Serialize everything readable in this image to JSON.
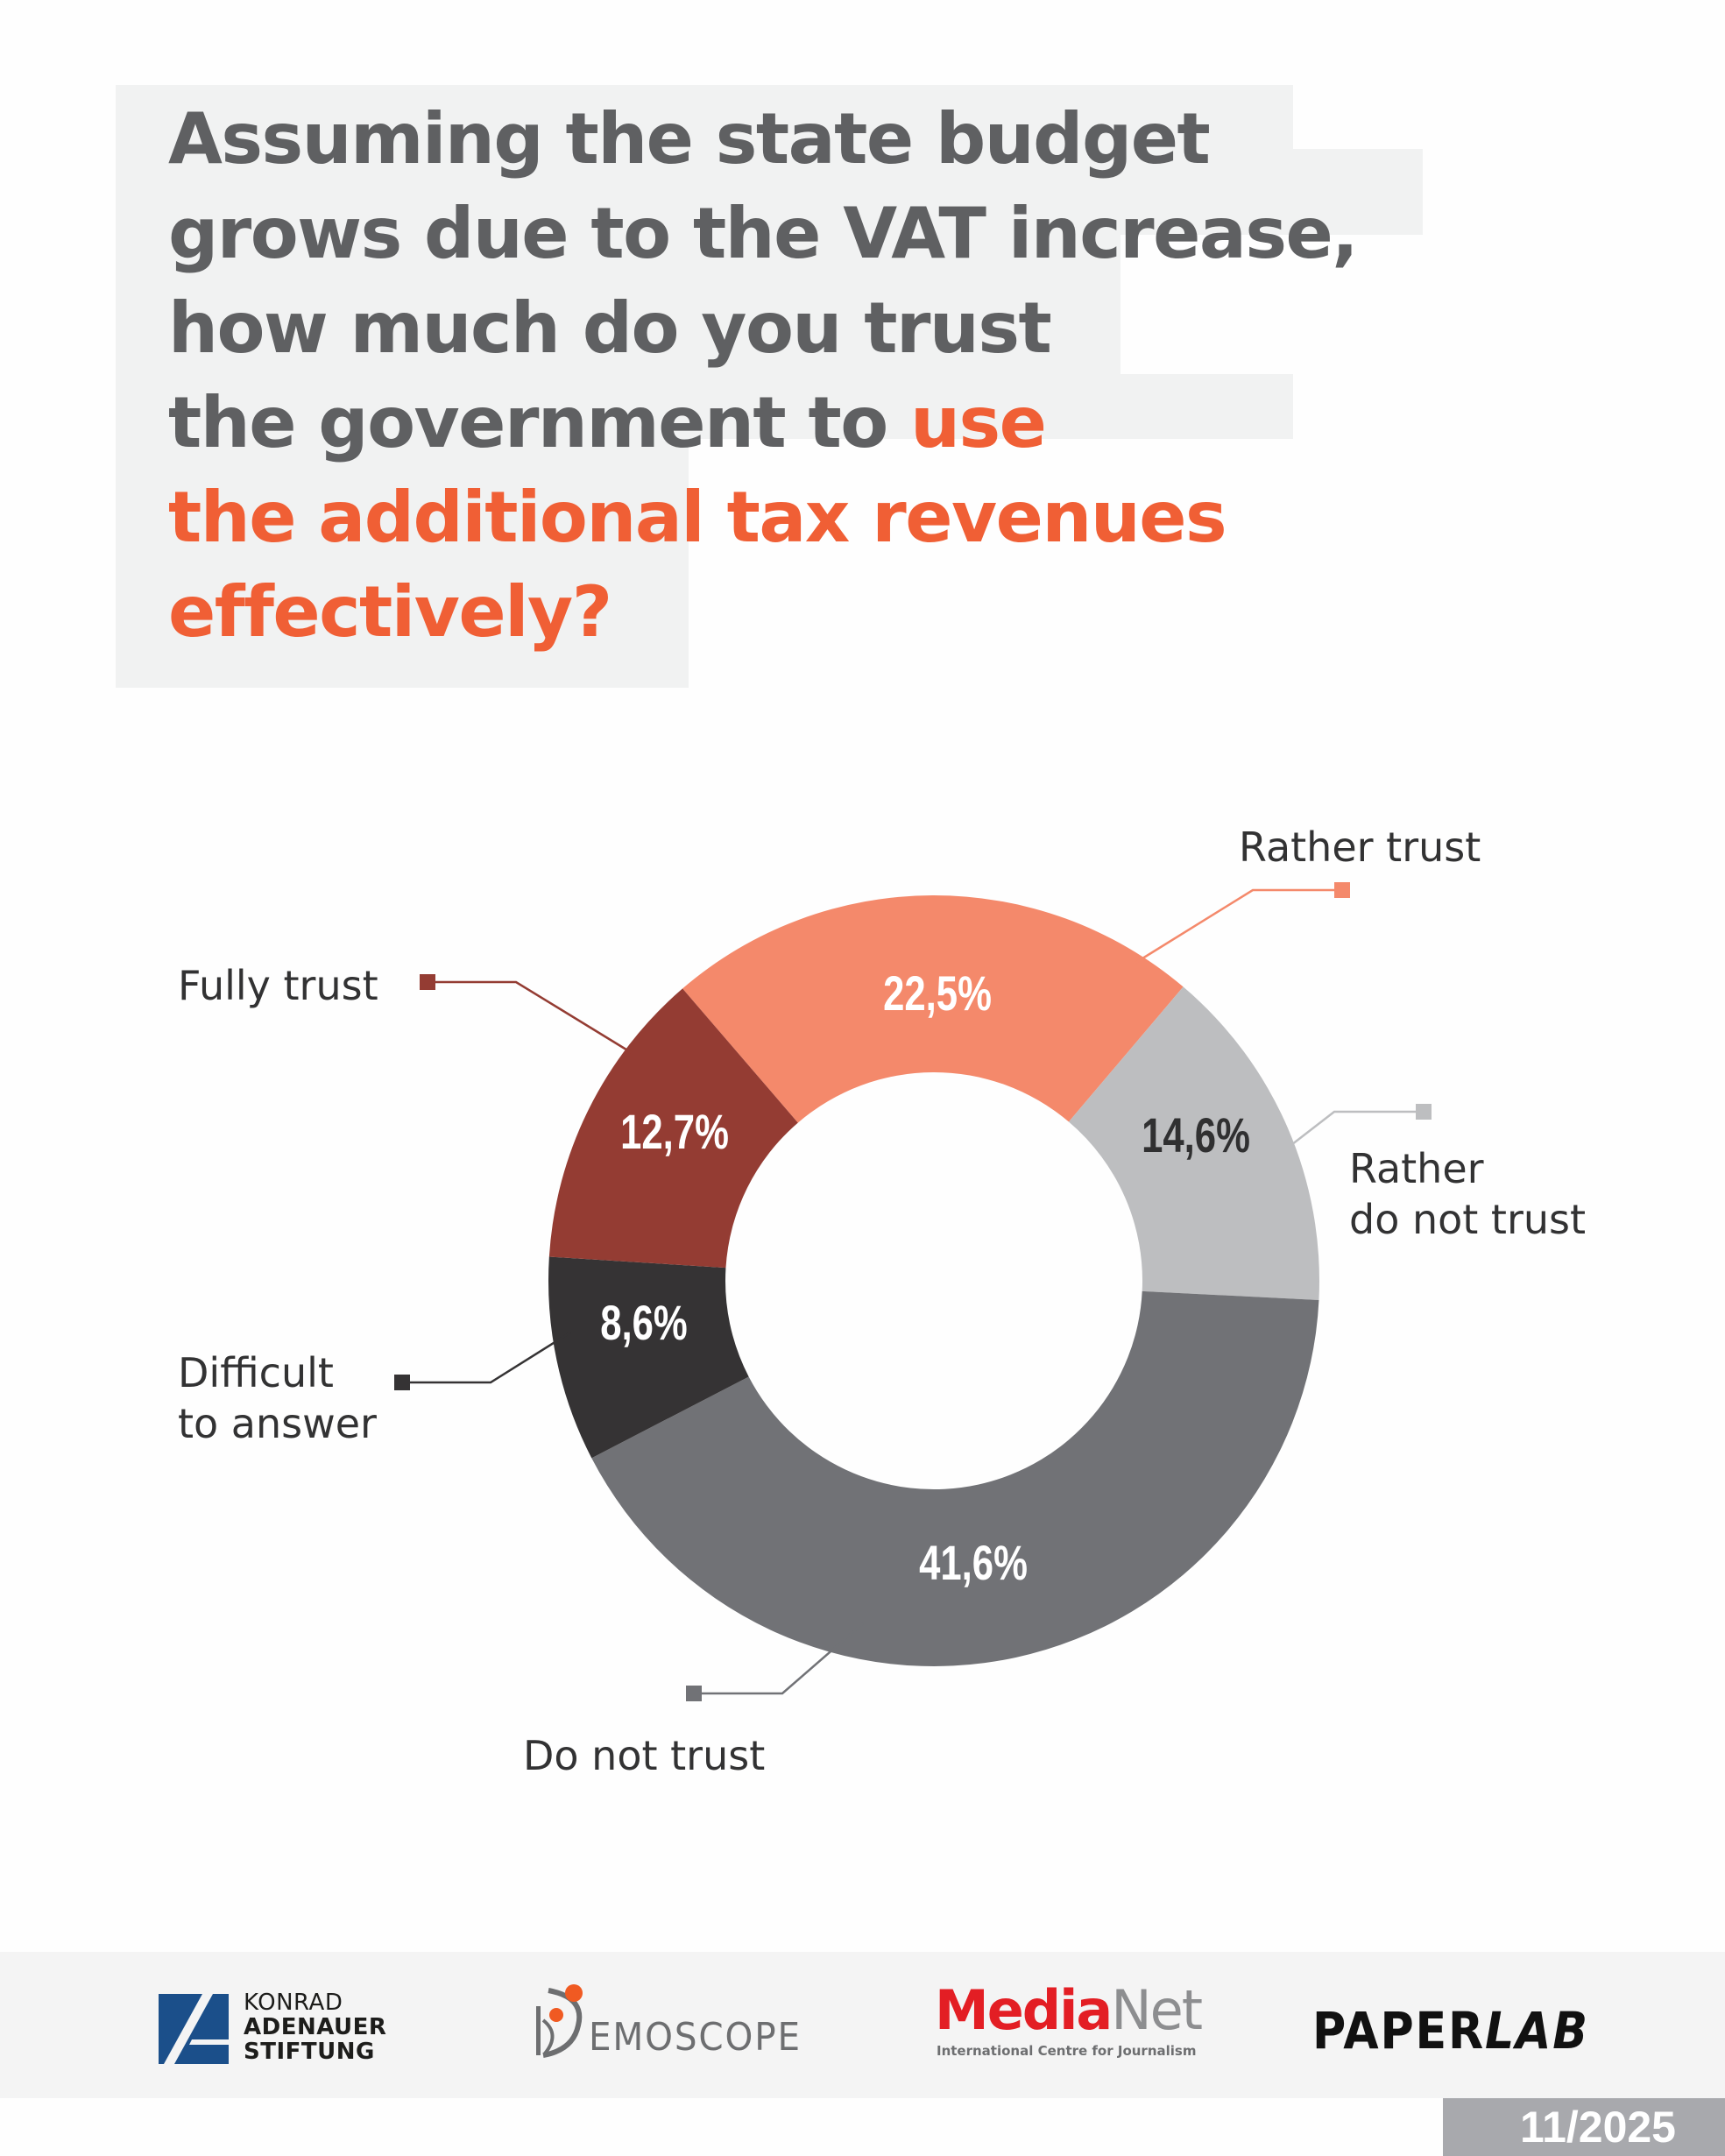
{
  "title": {
    "lines": [
      [
        {
          "text": "Assuming the state budget",
          "accent": false
        }
      ],
      [
        {
          "text": "grows due to the VAT increase,",
          "accent": false
        }
      ],
      [
        {
          "text": "how much do you trust",
          "accent": false
        }
      ],
      [
        {
          "text": "the government to ",
          "accent": false
        },
        {
          "text": "use",
          "accent": true
        }
      ],
      [
        {
          "text": "the additional tax revenues",
          "accent": true
        }
      ],
      [
        {
          "text": "effectively?",
          "accent": true
        }
      ]
    ],
    "colors": {
      "text": "#5f6062",
      "accent": "#f05f35",
      "background": "#f1f2f2"
    }
  },
  "chart_data": {
    "type": "pie",
    "variant": "donut",
    "title": "Assuming the state budget grows due to the VAT increase, how much do you trust the government to use the additional tax revenues effectively?",
    "unit": "%",
    "decimal_separator": ",",
    "start_category": "Rather trust",
    "direction": "clockwise",
    "slices": [
      {
        "label": "Rather trust",
        "value": 22.5,
        "display": "22,5%",
        "color": "#f4896b",
        "text_color": "#ffffff",
        "label_lines": [
          "Rather trust"
        ]
      },
      {
        "label": "Rather do not trust",
        "value": 14.6,
        "display": "14,6%",
        "color": "#bdbec0",
        "text_color": "#303031",
        "label_lines": [
          "Rather",
          "do not trust"
        ]
      },
      {
        "label": "Do not trust",
        "value": 41.6,
        "display": "41,6%",
        "color": "#717276",
        "text_color": "#ffffff",
        "label_lines": [
          "Do not trust"
        ]
      },
      {
        "label": "Difficult to answer",
        "value": 8.6,
        "display": "8,6%",
        "color": "#353334",
        "text_color": "#ffffff",
        "label_lines": [
          "Difficult",
          "to answer"
        ]
      },
      {
        "label": "Fully trust",
        "value": 12.7,
        "display": "12,7%",
        "color": "#943c33",
        "text_color": "#ffffff",
        "label_lines": [
          "Fully trust"
        ]
      }
    ],
    "legend": "callout labels with leader lines"
  },
  "footer": {
    "logos": {
      "kas": {
        "lines": [
          "KONRAD",
          "ADENAUER",
          "STIFTUNG"
        ],
        "color": "#1b4f8a"
      },
      "demoscope": {
        "text": "EMOSCOPE",
        "mark_letter": "D",
        "accent": "#f05a22"
      },
      "medianet": {
        "brand_a": "Media",
        "brand_b": "Net",
        "subtitle": "International Centre for Journalism"
      },
      "paperlab": {
        "part_a": "PAPER",
        "part_b": "LAB"
      }
    },
    "date": "11/2025"
  }
}
